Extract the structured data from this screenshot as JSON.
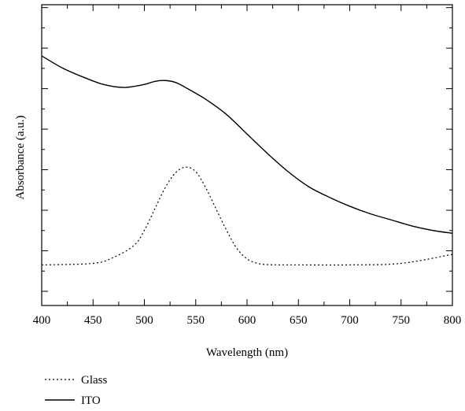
{
  "chart_data": {
    "type": "line",
    "xlabel": "Wavelength (nm)",
    "ylabel": "Absorbance (a.u.)",
    "xlim": [
      400,
      800
    ],
    "ylim": [
      0,
      1
    ],
    "x_ticks": [
      "400",
      "450",
      "500",
      "550",
      "600",
      "650",
      "700",
      "750",
      "800"
    ],
    "y_tick_labels": "none",
    "grid": false,
    "legend_placement": "bottom-left, below plot",
    "series": [
      {
        "name": "Glass",
        "style": "dotted",
        "color": "#000000",
        "x": [
          400,
          450,
          470,
          490,
          500,
          510,
          520,
          530,
          540,
          550,
          560,
          570,
          580,
          590,
          600,
          610,
          620,
          630,
          650,
          700,
          750,
          800
        ],
        "y": [
          0.135,
          0.14,
          0.16,
          0.2,
          0.25,
          0.32,
          0.39,
          0.44,
          0.46,
          0.445,
          0.39,
          0.32,
          0.25,
          0.19,
          0.155,
          0.14,
          0.136,
          0.135,
          0.135,
          0.135,
          0.14,
          0.17
        ]
      },
      {
        "name": "ITO",
        "style": "solid",
        "color": "#000000",
        "x": [
          400,
          420,
          440,
          460,
          480,
          500,
          510,
          520,
          530,
          540,
          560,
          580,
          600,
          620,
          640,
          660,
          680,
          700,
          720,
          740,
          760,
          780,
          800
        ],
        "y": [
          0.83,
          0.79,
          0.76,
          0.735,
          0.725,
          0.735,
          0.745,
          0.748,
          0.742,
          0.725,
          0.685,
          0.635,
          0.57,
          0.505,
          0.445,
          0.395,
          0.36,
          0.33,
          0.305,
          0.285,
          0.265,
          0.25,
          0.24
        ]
      }
    ]
  }
}
